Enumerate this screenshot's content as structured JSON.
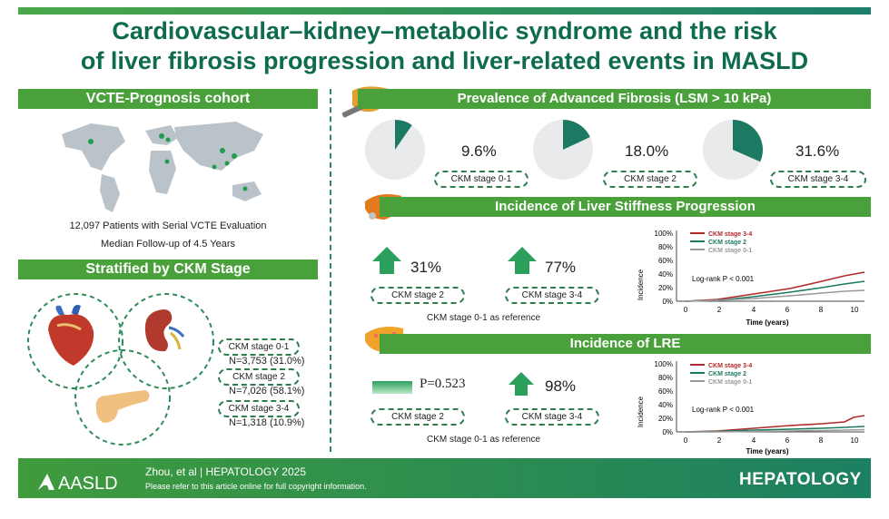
{
  "title": {
    "line1": "Cardiovascular–kidney–metabolic syndrome and the risk",
    "line2": "of liver fibrosis progression and liver-related events in MASLD"
  },
  "left": {
    "cohort_header": "VCTE-Prognosis cohort",
    "patients": "12,097 Patients with Serial VCTE Evaluation",
    "followup": "Median Follow-up of 4.5 Years",
    "strat_header": "Stratified by CKM Stage",
    "stages": [
      {
        "label": "CKM stage 0-1",
        "n": "N=3,753 (31.0%)"
      },
      {
        "label": "CKM stage 2",
        "n": "N=7,026 (58.1%)"
      },
      {
        "label": "CKM stage 3-4",
        "n": "N=1,318 (10.9%)"
      }
    ]
  },
  "prevalence": {
    "header": "Prevalence of Advanced Fibrosis (LSM > 10 kPa)",
    "items": [
      {
        "label": "CKM stage 0-1",
        "value_text": "9.6%",
        "value": 0.096
      },
      {
        "label": "CKM stage 2",
        "value_text": "18.0%",
        "value": 0.18
      },
      {
        "label": "CKM stage 3-4",
        "value_text": "31.6%",
        "value": 0.316
      }
    ]
  },
  "lsp": {
    "header": "Incidence of Liver Stiffness Progression",
    "items": [
      {
        "pct": "31%",
        "label": "CKM stage 2"
      },
      {
        "pct": "77%",
        "label": "CKM stage 3-4"
      }
    ],
    "reference": "CKM stage 0-1 as reference",
    "chart": {
      "legend": [
        "CKM stage 3-4",
        "CKM stage 2",
        "CKM stage 0-1"
      ],
      "logrank": "Log-rank P < 0.001",
      "ylabel": "Incidence",
      "xlabel": "Time (years)",
      "yticks": [
        "100%",
        "80%",
        "60%",
        "40%",
        "20%",
        "0%"
      ],
      "xticks": [
        "0",
        "2",
        "4",
        "6",
        "8",
        "10"
      ]
    }
  },
  "lre": {
    "header": "Incidence of LRE",
    "p_text": "P=0.523",
    "pct": "98%",
    "labels": [
      "CKM stage 2",
      "CKM stage 3-4"
    ],
    "reference": "CKM stage 0-1 as reference",
    "chart": {
      "legend": [
        "CKM stage 3-4",
        "CKM stage 2",
        "CKM stage 0-1"
      ],
      "logrank": "Log-rank P < 0.001",
      "ylabel": "Incidence",
      "xlabel": "Time (years)",
      "yticks": [
        "100%",
        "80%",
        "60%",
        "40%",
        "20%",
        "0%"
      ],
      "xticks": [
        "0",
        "2",
        "4",
        "6",
        "8",
        "10"
      ]
    }
  },
  "footer": {
    "logo": "AASLD",
    "citation": "Zhou, et al  |  HEPATOLOGY 2025",
    "note": "Please refer to this article online for full copyright information.",
    "journal": "HEPATOLOGY"
  },
  "colors": {
    "stage34": "#b02a2a",
    "stage2": "#1c7a62",
    "stage01": "#9a9a9a",
    "green": "#4aa03a"
  }
}
